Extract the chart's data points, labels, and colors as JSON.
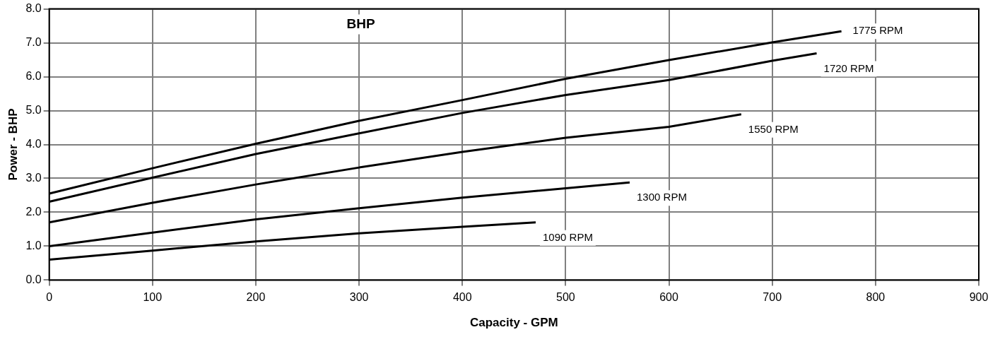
{
  "chart_data": {
    "type": "line",
    "xlabel": "Capacity - GPM",
    "ylabel": "Power - BHP",
    "annotations": [
      "BHP"
    ],
    "xlim": [
      0,
      900
    ],
    "xticks": [
      0,
      100,
      200,
      300,
      400,
      500,
      600,
      700,
      800,
      900
    ],
    "ylim": [
      0,
      8
    ],
    "yticks": [
      {
        "value": 0,
        "label": "0.0"
      },
      {
        "value": 1,
        "label": "1.0"
      },
      {
        "value": 2,
        "label": "2.0"
      },
      {
        "value": 3,
        "label": "3.0"
      },
      {
        "value": 4,
        "label": "4.0"
      },
      {
        "value": 5,
        "label": "5.0"
      },
      {
        "value": 6,
        "label": "6.0"
      },
      {
        "value": 7,
        "label": "7.0"
      },
      {
        "value": 8,
        "label": "8.0"
      }
    ],
    "grid": true,
    "legend": false,
    "marker": "none",
    "line_style": "solid",
    "series": [
      {
        "name": "1775 RPM",
        "color": "#000000",
        "x": [
          0,
          100,
          200,
          300,
          400,
          500,
          600,
          700,
          767
        ],
        "values": [
          2.55,
          3.3,
          4.02,
          4.7,
          5.31,
          5.94,
          6.49,
          7.01,
          7.34
        ]
      },
      {
        "name": "1720 RPM",
        "color": "#000000",
        "x": [
          0,
          100,
          200,
          300,
          400,
          500,
          600,
          700,
          743
        ],
        "values": [
          2.31,
          3.02,
          3.72,
          4.33,
          4.93,
          5.46,
          5.9,
          6.47,
          6.69
        ]
      },
      {
        "name": "1550 RPM",
        "color": "#000000",
        "x": [
          0,
          100,
          200,
          300,
          400,
          500,
          600,
          670
        ],
        "values": [
          1.7,
          2.28,
          2.82,
          3.32,
          3.78,
          4.2,
          4.52,
          4.89
        ]
      },
      {
        "name": "1300 RPM",
        "color": "#000000",
        "x": [
          0,
          100,
          200,
          300,
          400,
          500,
          562
        ],
        "values": [
          1.0,
          1.4,
          1.79,
          2.12,
          2.43,
          2.71,
          2.88
        ]
      },
      {
        "name": "1090 RPM",
        "color": "#000000",
        "x": [
          0,
          100,
          200,
          300,
          400,
          471
        ],
        "values": [
          0.6,
          0.87,
          1.14,
          1.38,
          1.57,
          1.7
        ]
      }
    ]
  }
}
